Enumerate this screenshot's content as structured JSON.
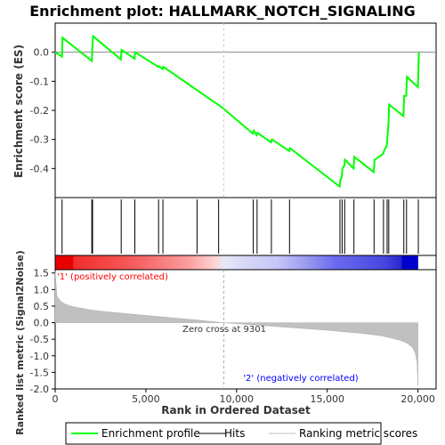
{
  "chart_data": {
    "type": "line",
    "title": "Enrichment plot: HALLMARK_NOTCH_SIGNALING",
    "n_genes": 20000,
    "es_panel": {
      "ylabel": "Enrichment score (ES)",
      "ylim": [
        -0.5,
        0.1
      ],
      "yticks": [
        0.0,
        -0.1,
        -0.2,
        -0.3,
        -0.4
      ],
      "ytick_labels": [
        "0.0",
        "-0.1",
        "-0.2",
        "-0.3",
        "-0.4"
      ],
      "series": [
        {
          "name": "Enrichment profile",
          "color": "#00ff00",
          "x": [
            0,
            380,
            400,
            2020,
            2040,
            2090,
            3620,
            3660,
            4380,
            4400,
            5680,
            5710,
            5920,
            5960,
            7800,
            7850,
            9200,
            10900,
            10950,
            11100,
            11150,
            11900,
            11950,
            12900,
            12950,
            15680,
            15720,
            15800,
            15840,
            15940,
            15980,
            16450,
            16490,
            17560,
            17610,
            18080,
            18130,
            18280,
            18320,
            18380,
            18410,
            19200,
            19240,
            19350,
            19390,
            20000,
            20050
          ],
          "y": [
            0.0,
            -0.015,
            0.05,
            -0.03,
            0.01,
            0.055,
            -0.025,
            0.008,
            -0.022,
            0.0,
            -0.05,
            -0.048,
            -0.058,
            -0.05,
            -0.13,
            -0.132,
            -0.19,
            -0.28,
            -0.27,
            -0.285,
            -0.277,
            -0.31,
            -0.3,
            -0.34,
            -0.33,
            -0.462,
            -0.44,
            -0.43,
            -0.4,
            -0.39,
            -0.37,
            -0.4,
            -0.36,
            -0.412,
            -0.37,
            -0.35,
            -0.34,
            -0.32,
            -0.29,
            -0.24,
            -0.18,
            -0.22,
            -0.15,
            -0.15,
            -0.085,
            -0.12,
            0.0
          ]
        }
      ]
    },
    "hits_panel": {
      "name": "Hits",
      "positions": [
        380,
        2020,
        2060,
        3640,
        4390,
        5700,
        5940,
        7820,
        9010,
        10920,
        11130,
        11920,
        12920,
        15700,
        15820,
        15960,
        16470,
        17580,
        18100,
        18300,
        18390,
        19220,
        19370,
        20020
      ]
    },
    "metric_panel": {
      "name": "Ranking metric scores",
      "ylabel": "Ranked list metric (Signal2Noise)",
      "xlabel": "Rank in Ordered Dataset",
      "ylim": [
        -2.0,
        1.6
      ],
      "yticks": [
        1.5,
        1.0,
        0.5,
        0.0,
        -0.5,
        -1.0,
        -1.5,
        -2.0
      ],
      "ytick_labels": [
        "1.5",
        "1.0",
        "0.5",
        "0.0",
        "-0.5",
        "-1.0",
        "-1.5",
        "-2.0"
      ],
      "xlim": [
        0,
        21000
      ],
      "xticks": [
        0,
        5000,
        10000,
        15000,
        20000
      ],
      "xtick_labels": [
        "0",
        "5,000",
        "10,000",
        "15,000",
        "20,000"
      ],
      "zero_cross": 9301,
      "zero_cross_label": "Zero cross at 9301",
      "pos_label": "'1' (positively correlated)",
      "neg_label": "'2' (negatively correlated)",
      "pos_color": "#ff0000",
      "neg_color": "#0000ff",
      "curve": {
        "x": [
          0,
          100,
          300,
          600,
          1000,
          2000,
          3000,
          4000,
          5000,
          6000,
          7000,
          8000,
          9301,
          10000,
          11000,
          12000,
          13000,
          14000,
          15000,
          16000,
          17000,
          18000,
          18500,
          19000,
          19400,
          19700,
          19850,
          19950,
          20000
        ],
        "y": [
          1.55,
          0.8,
          0.65,
          0.55,
          0.48,
          0.38,
          0.32,
          0.27,
          0.22,
          0.17,
          0.12,
          0.07,
          0.0,
          -0.03,
          -0.07,
          -0.11,
          -0.15,
          -0.19,
          -0.23,
          -0.28,
          -0.33,
          -0.4,
          -0.46,
          -0.53,
          -0.62,
          -0.75,
          -0.92,
          -1.2,
          -1.9
        ]
      }
    },
    "legend": {
      "placement": "bottom",
      "items": [
        {
          "label": "Enrichment profile",
          "color": "#00ff00"
        },
        {
          "label": "Hits",
          "color": "#000000"
        },
        {
          "label": "Ranking metric scores",
          "color": "#c0c0c0"
        }
      ]
    }
  }
}
